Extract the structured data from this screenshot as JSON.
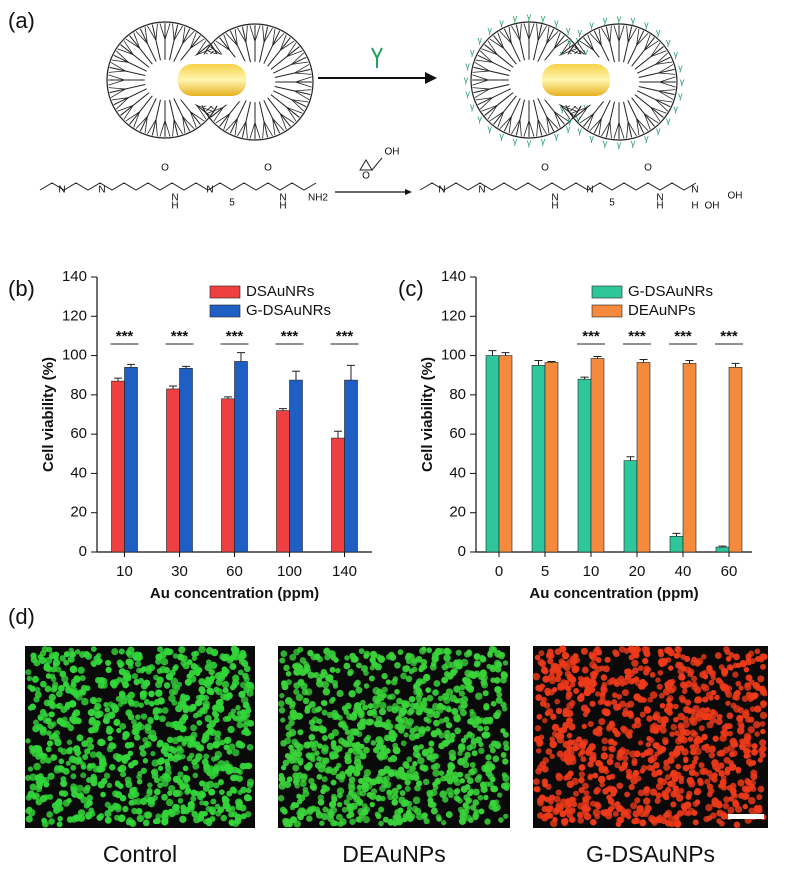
{
  "panels": {
    "a": "(a)",
    "b": "(b)",
    "c": "(c)",
    "d": "(d)"
  },
  "scheme": {
    "left_atoms": [
      "N",
      "N",
      "O",
      "N",
      "H",
      "N",
      "5",
      "O",
      "N",
      "H",
      "NH2"
    ],
    "reagent_atoms": [
      "O",
      "OH"
    ],
    "right_atoms": [
      "N",
      "N",
      "O",
      "N",
      "H",
      "N",
      "5",
      "O",
      "N",
      "H",
      "N",
      "H",
      "OH",
      "OH"
    ]
  },
  "images": {
    "captions": [
      "Control",
      "DEAuNPs",
      "G-DSAuNPs"
    ]
  },
  "chart_data": [
    {
      "type": "bar",
      "xlabel": "Au concentration (ppm)",
      "ylabel": "Cell viability (%)",
      "categories": [
        "10",
        "30",
        "60",
        "100",
        "140"
      ],
      "series": [
        {
          "name": "DSAuNRs",
          "color": "#ee4040",
          "values": [
            87,
            83,
            78,
            72,
            58
          ],
          "errors": [
            1.5,
            1.5,
            1,
            1,
            3.5
          ]
        },
        {
          "name": "G-DSAuNRs",
          "color": "#1f5fc4",
          "values": [
            94,
            93.5,
            97,
            87.5,
            87.5
          ],
          "errors": [
            1.5,
            1,
            4.5,
            4.5,
            7.5
          ]
        }
      ],
      "significance": [
        "***",
        "***",
        "***",
        "***",
        "***"
      ],
      "ylim": [
        0,
        140
      ],
      "yticks": [
        0,
        20,
        40,
        60,
        80,
        100,
        120,
        140
      ],
      "legend": "top-right"
    },
    {
      "type": "bar",
      "xlabel": "Au concentration (ppm)",
      "ylabel": "Cell viability (%)",
      "categories": [
        "0",
        "5",
        "10",
        "20",
        "40",
        "60"
      ],
      "series": [
        {
          "name": "G-DSAuNRs",
          "color": "#2ec79b",
          "values": [
            100,
            95,
            88,
            46.5,
            8,
            2.5
          ],
          "errors": [
            2.5,
            2.5,
            1,
            2,
            1.5,
            0.5
          ]
        },
        {
          "name": "DEAuNPs",
          "color": "#f58a3c",
          "values": [
            100,
            96.5,
            98.5,
            96.5,
            96,
            94
          ],
          "errors": [
            1.5,
            0.5,
            1,
            1.5,
            1.5,
            2
          ]
        }
      ],
      "significance": [
        null,
        null,
        "***",
        "***",
        "***",
        "***"
      ],
      "ylim": [
        0,
        140
      ],
      "yticks": [
        0,
        20,
        40,
        60,
        80,
        100,
        120,
        140
      ],
      "legend": "top-right"
    }
  ]
}
